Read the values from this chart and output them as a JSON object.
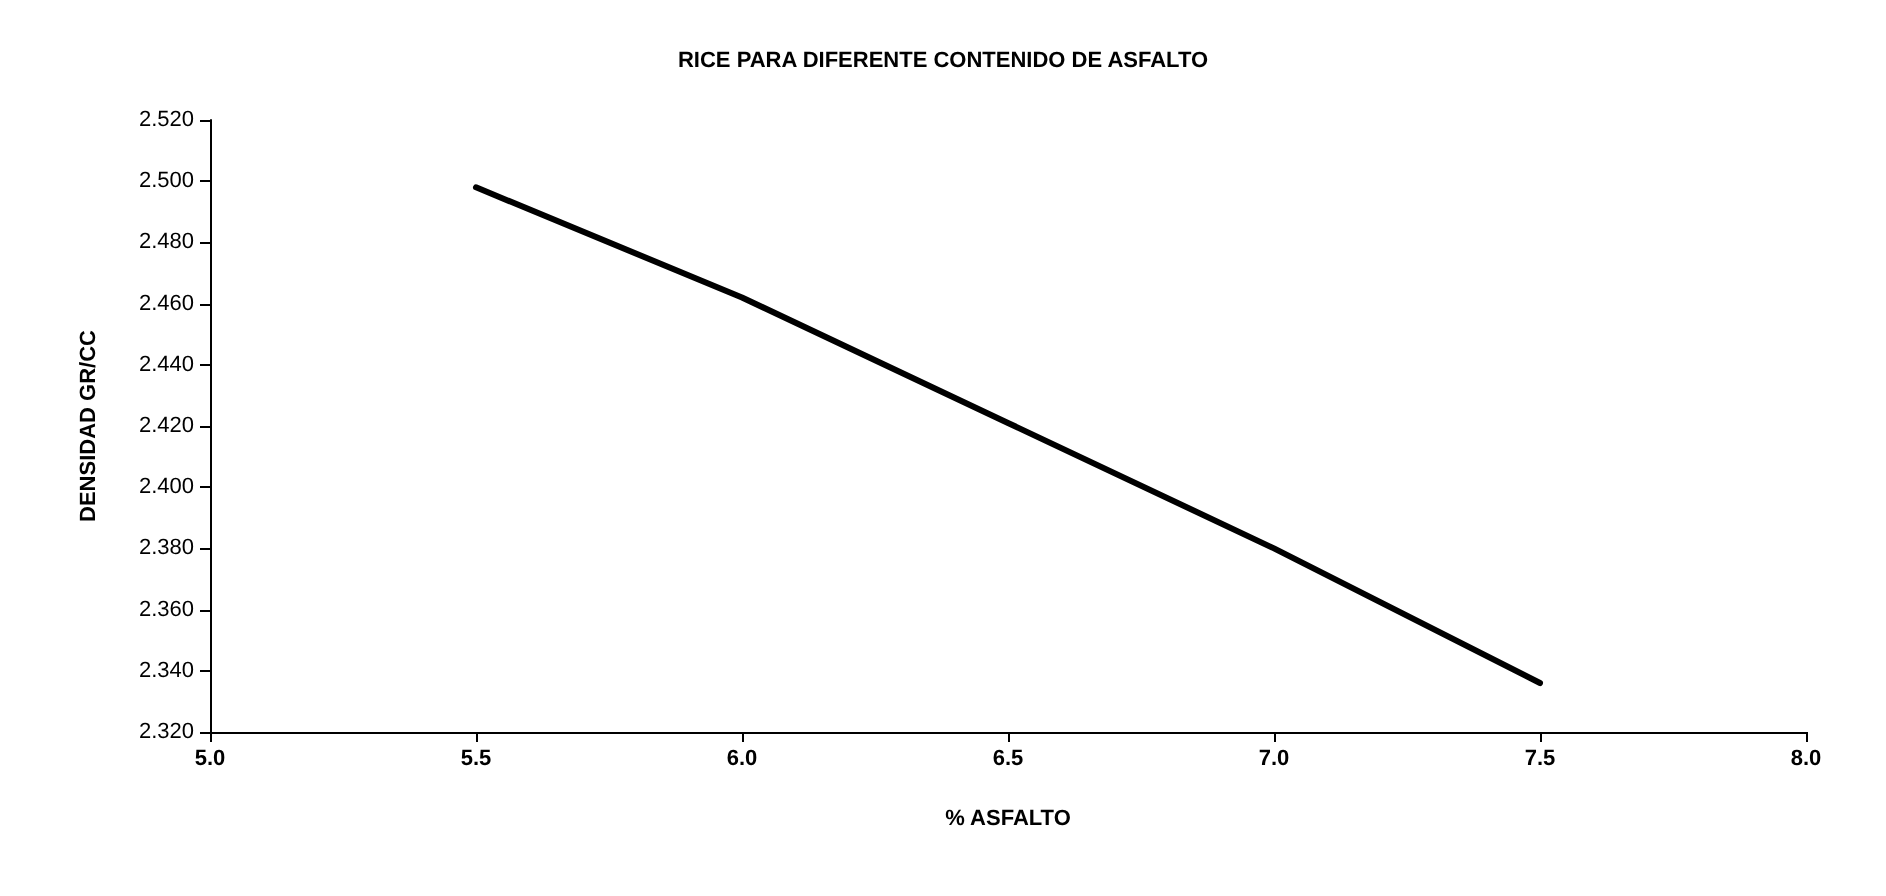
{
  "chart_data": {
    "type": "line",
    "title": "RICE PARA DIFERENTE CONTENIDO DE ASFALTO",
    "xlabel": "% ASFALTO",
    "ylabel": "DENSIDAD GR/CC",
    "x": [
      5.5,
      6.0,
      6.5,
      7.0,
      7.5
    ],
    "series": [
      {
        "color": "#000000",
        "values": [
          2.498,
          2.462,
          2.421,
          2.38,
          2.336
        ]
      }
    ],
    "xlim": [
      5.0,
      8.0
    ],
    "xticks": [
      {
        "value": 5.0,
        "label": "5.0"
      },
      {
        "value": 5.5,
        "label": "5.5"
      },
      {
        "value": 6.0,
        "label": "6.0"
      },
      {
        "value": 6.5,
        "label": "6.5"
      },
      {
        "value": 7.0,
        "label": "7.0"
      },
      {
        "value": 7.5,
        "label": "7.5"
      },
      {
        "value": 8.0,
        "label": "8.0"
      }
    ],
    "ylim": [
      2.32,
      2.52
    ],
    "yticks": [
      {
        "value": 2.32,
        "label": "2.320"
      },
      {
        "value": 2.34,
        "label": "2.340"
      },
      {
        "value": 2.36,
        "label": "2.360"
      },
      {
        "value": 2.38,
        "label": "2.380"
      },
      {
        "value": 2.4,
        "label": "2.400"
      },
      {
        "value": 2.42,
        "label": "2.420"
      },
      {
        "value": 2.44,
        "label": "2.440"
      },
      {
        "value": 2.46,
        "label": "2.460"
      },
      {
        "value": 2.48,
        "label": "2.480"
      },
      {
        "value": 2.5,
        "label": "2.500"
      },
      {
        "value": 2.52,
        "label": "2.520"
      }
    ],
    "grid": false,
    "marker": "none",
    "line_style": "solid"
  }
}
